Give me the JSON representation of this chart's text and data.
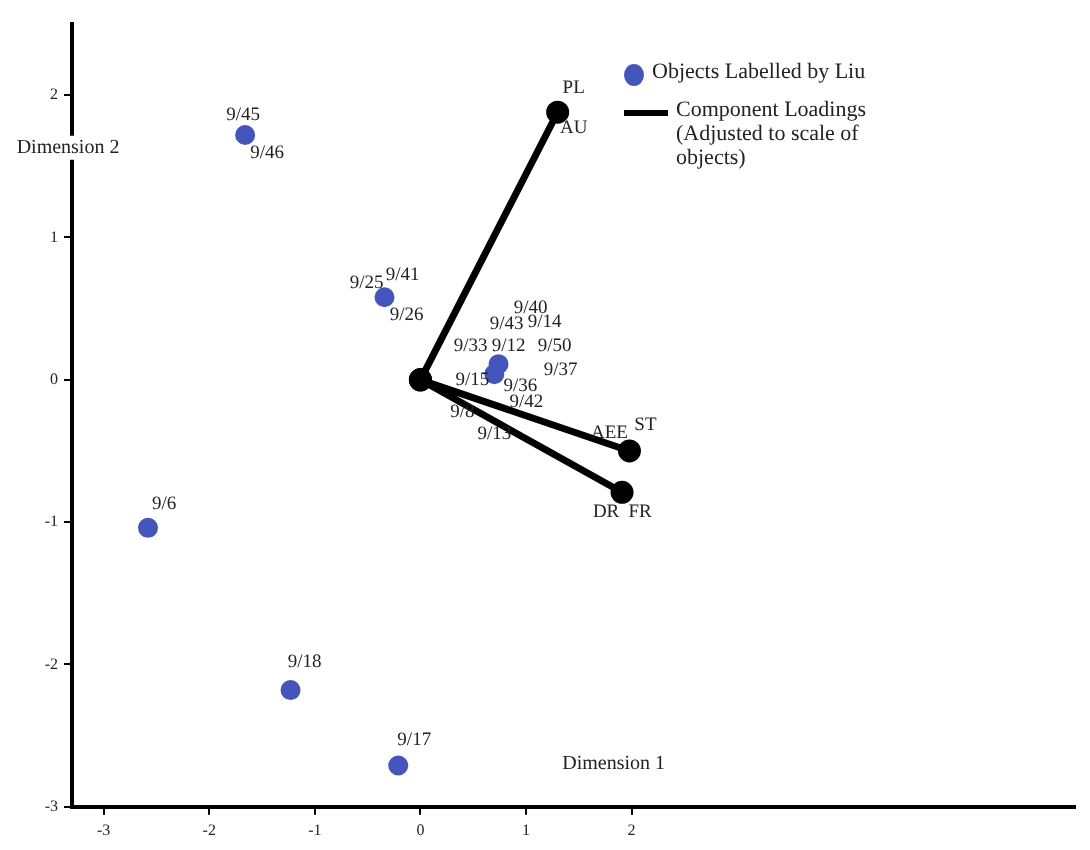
{
  "chart_data": {
    "type": "scatter",
    "xlabel": "Dimension 1",
    "ylabel": "Dimension 2",
    "xlim": [
      -3.3,
      6.2
    ],
    "ylim": [
      -3,
      2.5
    ],
    "xticks": [
      -3,
      -2,
      -1,
      0,
      1,
      2
    ],
    "yticks": [
      -3,
      -2,
      -1,
      0,
      1,
      2
    ],
    "grid": false,
    "legend": "top right",
    "marker": "circle",
    "series": [
      {
        "name": "Objects Labelled by Liu",
        "color": "#4455bb",
        "x": [
          -1.66,
          -0.34,
          0.74,
          0.7,
          -2.58,
          -1.23,
          -0.21
        ],
        "values": [
          1.72,
          0.58,
          0.11,
          0.04,
          -1.04,
          -2.18,
          -2.71
        ]
      },
      {
        "name": "Component Loadings (Adjusted to scale of objects)",
        "type": "line",
        "color": "#000000",
        "x": [
          0,
          1.3,
          0,
          1.98,
          0,
          1.91
        ],
        "values": [
          0,
          1.88,
          0,
          -0.5,
          0,
          -0.79
        ]
      }
    ],
    "annotations": [
      {
        "text": "9/45",
        "x": -1.66,
        "y": 1.72
      },
      {
        "text": "9/46",
        "x": -1.66,
        "y": 1.72
      },
      {
        "text": "9/25",
        "x": -0.34,
        "y": 0.58
      },
      {
        "text": "9/41",
        "x": -0.34,
        "y": 0.58
      },
      {
        "text": "9/26",
        "x": -0.34,
        "y": 0.58
      },
      {
        "text": "9/40",
        "x": 0.74,
        "y": 0.11
      },
      {
        "text": "9/43",
        "x": 0.74,
        "y": 0.11
      },
      {
        "text": "9/14",
        "x": 0.74,
        "y": 0.11
      },
      {
        "text": "9/33",
        "x": 0.74,
        "y": 0.11
      },
      {
        "text": "9/12",
        "x": 0.74,
        "y": 0.11
      },
      {
        "text": "9/50",
        "x": 0.74,
        "y": 0.11
      },
      {
        "text": "9/15",
        "x": 0.7,
        "y": 0.04
      },
      {
        "text": "9/36",
        "x": 0.7,
        "y": 0.04
      },
      {
        "text": "9/37",
        "x": 0.74,
        "y": 0.11
      },
      {
        "text": "9/42",
        "x": 0.7,
        "y": 0.04
      },
      {
        "text": "9/8",
        "x": 0.7,
        "y": 0.04
      },
      {
        "text": "9/13",
        "x": 0.7,
        "y": 0.04
      },
      {
        "text": "9/6",
        "x": -2.58,
        "y": -1.04
      },
      {
        "text": "9/18",
        "x": -1.23,
        "y": -2.18
      },
      {
        "text": "9/17",
        "x": -0.21,
        "y": -2.71
      },
      {
        "text": "PL",
        "x": 1.3,
        "y": 1.88
      },
      {
        "text": "AU",
        "x": 1.3,
        "y": 1.88
      },
      {
        "text": "AEE",
        "x": 1.98,
        "y": -0.5
      },
      {
        "text": "ST",
        "x": 1.98,
        "y": -0.5
      },
      {
        "text": "DR",
        "x": 1.91,
        "y": -0.79
      },
      {
        "text": "FR",
        "x": 1.91,
        "y": -0.79
      }
    ]
  }
}
